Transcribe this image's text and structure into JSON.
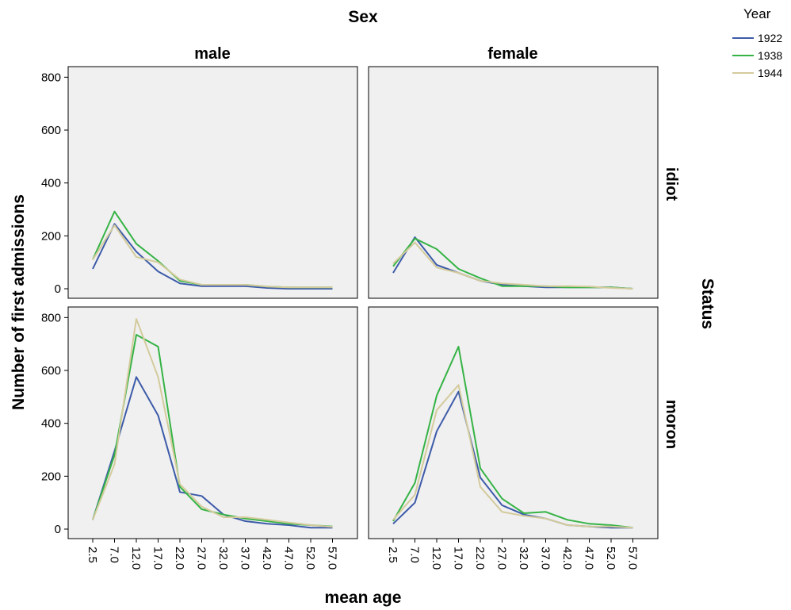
{
  "chart_data": {
    "type": "line",
    "facet_col_title": "Sex",
    "facet_row_title": "Status",
    "xlabel": "mean age",
    "ylabel": "Number of first admissions",
    "x_categories": [
      "2.5",
      "7.0",
      "12.0",
      "17.0",
      "22.0",
      "27.0",
      "32.0",
      "37.0",
      "42.0",
      "47.0",
      "52.0",
      "57.0"
    ],
    "y_ticks": [
      0,
      200,
      400,
      600,
      800
    ],
    "ylim": [
      0,
      840
    ],
    "legend": {
      "title": "Year",
      "placement": "top-right",
      "entries": [
        {
          "name": "1922",
          "color": "#3d5ba9"
        },
        {
          "name": "1938",
          "color": "#35b345"
        },
        {
          "name": "1944",
          "color": "#d3cb9c"
        }
      ]
    },
    "columns": [
      "male",
      "female"
    ],
    "rows": [
      "idiot",
      "moron"
    ],
    "panels": [
      {
        "row": "idiot",
        "col": "male",
        "series": [
          {
            "name": "1922",
            "values": [
              75,
              245,
              140,
              65,
              20,
              10,
              10,
              10,
              3,
              0,
              0,
              0
            ]
          },
          {
            "name": "1938",
            "values": [
              110,
              292,
              170,
              105,
              30,
              15,
              15,
              15,
              8,
              5,
              5,
              5
            ]
          },
          {
            "name": "1944",
            "values": [
              110,
              240,
              120,
              100,
              35,
              15,
              15,
              15,
              8,
              5,
              5,
              5
            ]
          }
        ]
      },
      {
        "row": "idiot",
        "col": "female",
        "series": [
          {
            "name": "1922",
            "values": [
              60,
              195,
              90,
              60,
              30,
              15,
              10,
              5,
              5,
              5,
              5,
              0
            ]
          },
          {
            "name": "1938",
            "values": [
              85,
              190,
              150,
              75,
              40,
              10,
              10,
              10,
              5,
              5,
              5,
              0
            ]
          },
          {
            "name": "1944",
            "values": [
              95,
              175,
              80,
              60,
              30,
              20,
              15,
              10,
              10,
              8,
              3,
              0
            ]
          }
        ]
      },
      {
        "row": "moron",
        "col": "male",
        "series": [
          {
            "name": "1922",
            "values": [
              35,
              295,
              575,
              430,
              140,
              125,
              55,
              30,
              20,
              15,
              5,
              5
            ]
          },
          {
            "name": "1938",
            "values": [
              35,
              280,
              735,
              690,
              160,
              75,
              55,
              40,
              30,
              20,
              15,
              10
            ]
          },
          {
            "name": "1944",
            "values": [
              35,
              245,
              795,
              575,
              170,
              85,
              45,
              45,
              35,
              25,
              15,
              8
            ]
          }
        ]
      },
      {
        "row": "moron",
        "col": "female",
        "series": [
          {
            "name": "1922",
            "values": [
              20,
              100,
              370,
              520,
              195,
              90,
              55,
              40,
              15,
              10,
              5,
              5
            ]
          },
          {
            "name": "1938",
            "values": [
              30,
              175,
              505,
              690,
              230,
              115,
              60,
              65,
              35,
              20,
              15,
              5
            ]
          },
          {
            "name": "1944",
            "values": [
              35,
              130,
              450,
              545,
              160,
              65,
              50,
              40,
              15,
              10,
              10,
              5
            ]
          }
        ]
      }
    ]
  }
}
